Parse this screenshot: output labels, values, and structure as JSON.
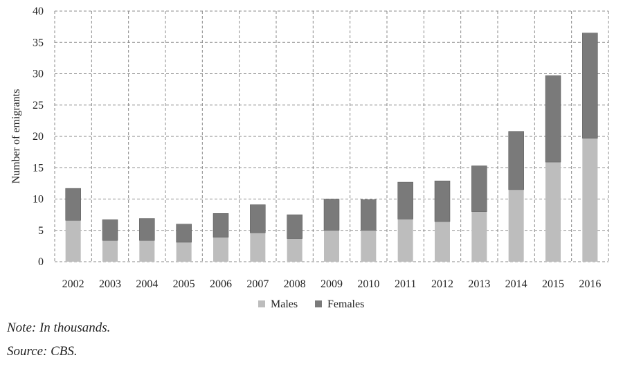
{
  "chart_data": {
    "type": "bar",
    "stacked": true,
    "categories": [
      "2002",
      "2003",
      "2004",
      "2005",
      "2006",
      "2007",
      "2008",
      "2009",
      "2010",
      "2011",
      "2012",
      "2013",
      "2014",
      "2015",
      "2016"
    ],
    "series": [
      {
        "name": "Males",
        "color": "#bdbdbd",
        "values": [
          6.6,
          3.4,
          3.4,
          3.1,
          3.9,
          4.6,
          3.7,
          5.0,
          5.0,
          6.8,
          6.4,
          8.0,
          11.5,
          15.9,
          19.7
        ]
      },
      {
        "name": "Females",
        "color": "#7a7a7a",
        "values": [
          5.1,
          3.3,
          3.5,
          2.9,
          3.8,
          4.5,
          3.8,
          5.0,
          4.9,
          5.9,
          6.5,
          7.3,
          9.3,
          13.8,
          16.8
        ]
      }
    ],
    "xlabel": "",
    "ylabel": "Number of emigrants",
    "ylim": [
      0,
      40
    ],
    "yticks": [
      0,
      5,
      10,
      15,
      20,
      25,
      30,
      35,
      40
    ],
    "grid": true,
    "grid_style": "dashed",
    "legend_position": "bottom-center"
  },
  "notes": {
    "note": "Note: In thousands.",
    "source": "Source: CBS."
  }
}
